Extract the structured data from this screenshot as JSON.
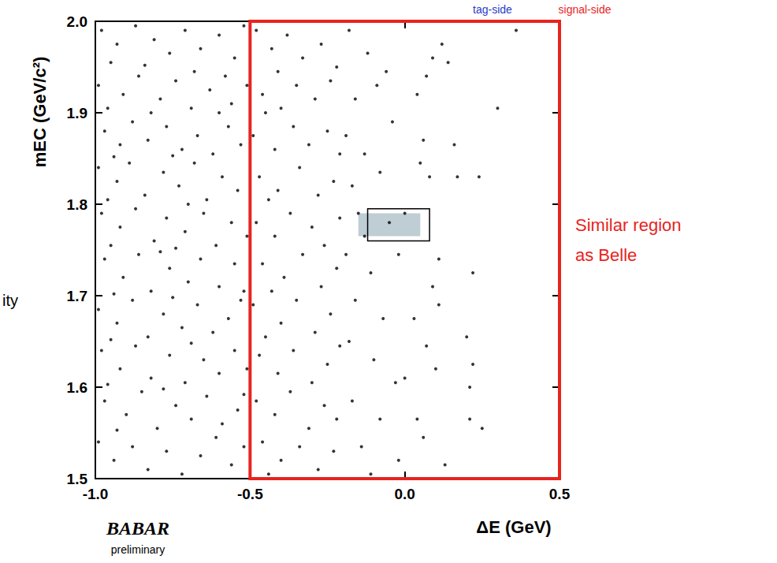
{
  "chart_data": {
    "type": "scatter",
    "xlabel": "ΔE (GeV)",
    "ylabel": "mEC (GeV/c²)",
    "color": "#000000",
    "marker": "circle",
    "grid": false,
    "xlim": [
      -1.0,
      0.5
    ],
    "ylim": [
      1.5,
      2.0
    ],
    "xticks": [
      {
        "value": -1.0,
        "label": "-1.0"
      },
      -0.5,
      {
        "value": 0.0,
        "label": "0.0"
      },
      0.5
    ],
    "yticks": [
      1.5,
      1.6,
      1.7,
      1.8,
      1.9,
      {
        "value": 2.0,
        "label": "2.0"
      }
    ],
    "x": [
      -0.98,
      -0.93,
      -0.87,
      -0.81,
      -0.76,
      -0.71,
      -0.66,
      -0.6,
      -0.55,
      -0.52,
      -0.95,
      -0.84,
      -0.68,
      -0.58,
      -0.99,
      -0.91,
      -0.86,
      -0.79,
      -0.74,
      -0.69,
      -0.63,
      -0.56,
      -0.51,
      -0.96,
      -0.82,
      -0.6,
      -0.97,
      -0.92,
      -0.88,
      -0.83,
      -0.77,
      -0.72,
      -0.67,
      -0.62,
      -0.57,
      -0.53,
      -0.94,
      -0.75,
      -0.99,
      -0.93,
      -0.89,
      -0.84,
      -0.78,
      -0.73,
      -0.68,
      -0.64,
      -0.59,
      -0.54,
      -0.96,
      -0.7,
      -0.98,
      -0.92,
      -0.87,
      -0.81,
      -0.77,
      -0.71,
      -0.65,
      -0.61,
      -0.56,
      -0.51,
      -0.95,
      -0.74,
      -0.97,
      -0.91,
      -0.86,
      -0.82,
      -0.76,
      -0.7,
      -0.66,
      -0.6,
      -0.55,
      -0.52,
      -0.94,
      -0.79,
      -0.99,
      -0.93,
      -0.88,
      -0.83,
      -0.78,
      -0.72,
      -0.67,
      -0.62,
      -0.57,
      -0.53,
      -0.95,
      -0.75,
      -0.98,
      -0.92,
      -0.87,
      -0.82,
      -0.76,
      -0.71,
      -0.65,
      -0.6,
      -0.55,
      -0.51,
      -0.96,
      -0.69,
      -0.97,
      -0.9,
      -0.85,
      -0.8,
      -0.74,
      -0.69,
      -0.64,
      -0.59,
      -0.54,
      -0.93,
      -0.78,
      -0.52,
      -0.99,
      -0.94,
      -0.88,
      -0.83,
      -0.77,
      -0.72,
      -0.66,
      -0.61,
      -0.56,
      -0.52,
      -0.48,
      -0.43,
      -0.38,
      -0.33,
      -0.27,
      -0.22,
      -0.41,
      -0.46,
      -0.4,
      -0.35,
      -0.29,
      -0.24,
      -0.45,
      -0.49,
      -0.42,
      -0.36,
      -0.31,
      -0.25,
      -0.21,
      -0.47,
      -0.41,
      -0.34,
      -0.28,
      -0.23,
      -0.44,
      -0.48,
      -0.42,
      -0.37,
      -0.3,
      -0.26,
      -0.21,
      -0.46,
      -0.39,
      -0.33,
      -0.27,
      -0.22,
      -0.43,
      -0.49,
      -0.4,
      -0.35,
      -0.29,
      -0.24,
      -0.45,
      -0.47,
      -0.41,
      -0.36,
      -0.3,
      -0.25,
      -0.21,
      -0.48,
      -0.42,
      -0.37,
      -0.31,
      -0.26,
      -0.22,
      -0.46,
      -0.4,
      -0.34,
      -0.28,
      -0.23,
      -0.44,
      -0.18,
      -0.12,
      -0.06,
      -0.16,
      -0.09,
      -0.19,
      -0.13,
      -0.04,
      -0.17,
      -0.08,
      -0.15,
      -0.05,
      -0.19,
      -0.11,
      -0.02,
      -0.16,
      -0.07,
      -0.18,
      -0.1,
      -0.03,
      -0.17,
      -0.08,
      -0.14,
      -0.02,
      -0.11,
      -0.13,
      0.09,
      0.14,
      0.3,
      0.36,
      0.16,
      0.17,
      0.09,
      0.11,
      0.22,
      0.2,
      0.22,
      0.21,
      0.21,
      0.25,
      0.13,
      0.24,
      0.06,
      0.04,
      0.07,
      0.0,
      0.03,
      0.07,
      0.0,
      0.04,
      0.06,
      0.1,
      0.11,
      0.05,
      0.12,
      0.08
    ],
    "values": [
      1.99,
      1.975,
      1.995,
      1.98,
      1.965,
      1.99,
      1.97,
      1.985,
      1.96,
      1.995,
      1.955,
      1.952,
      1.945,
      1.94,
      1.93,
      1.92,
      1.94,
      1.915,
      1.935,
      1.905,
      1.925,
      1.91,
      1.93,
      1.905,
      1.9,
      1.9,
      1.88,
      1.865,
      1.89,
      1.87,
      1.885,
      1.86,
      1.875,
      1.855,
      1.885,
      1.865,
      1.852,
      1.853,
      1.84,
      1.825,
      1.845,
      1.81,
      1.835,
      1.82,
      1.845,
      1.805,
      1.83,
      1.815,
      1.805,
      1.8,
      1.79,
      1.775,
      1.795,
      1.76,
      1.785,
      1.77,
      1.79,
      1.755,
      1.78,
      1.765,
      1.755,
      1.752,
      1.74,
      1.72,
      1.745,
      1.705,
      1.73,
      1.715,
      1.74,
      1.71,
      1.735,
      1.705,
      1.702,
      1.748,
      1.685,
      1.67,
      1.695,
      1.655,
      1.68,
      1.665,
      1.69,
      1.66,
      1.675,
      1.695,
      1.652,
      1.698,
      1.64,
      1.62,
      1.645,
      1.61,
      1.635,
      1.605,
      1.63,
      1.615,
      1.64,
      1.62,
      1.603,
      1.648,
      1.585,
      1.57,
      1.595,
      1.555,
      1.58,
      1.565,
      1.59,
      1.56,
      1.575,
      1.553,
      1.598,
      1.592,
      1.54,
      1.52,
      1.535,
      1.51,
      1.53,
      1.505,
      1.525,
      1.545,
      1.515,
      1.535,
      1.99,
      1.97,
      1.985,
      1.96,
      1.975,
      1.95,
      1.945,
      1.92,
      1.905,
      1.93,
      1.915,
      1.935,
      1.9,
      1.875,
      1.86,
      1.885,
      1.865,
      1.88,
      1.855,
      1.83,
      1.815,
      1.84,
      1.81,
      1.825,
      1.805,
      1.78,
      1.765,
      1.79,
      1.775,
      1.755,
      1.785,
      1.735,
      1.72,
      1.745,
      1.71,
      1.73,
      1.705,
      1.69,
      1.67,
      1.695,
      1.66,
      1.68,
      1.655,
      1.635,
      1.615,
      1.64,
      1.605,
      1.625,
      1.645,
      1.585,
      1.57,
      1.595,
      1.555,
      1.58,
      1.565,
      1.54,
      1.52,
      1.535,
      1.51,
      1.53,
      1.505,
      1.99,
      1.965,
      1.945,
      1.915,
      1.93,
      1.875,
      1.855,
      1.89,
      1.82,
      1.835,
      1.79,
      1.78,
      1.745,
      1.725,
      1.745,
      1.695,
      1.675,
      1.65,
      1.63,
      1.605,
      1.585,
      1.565,
      1.535,
      1.52,
      1.505,
      1.765,
      1.96,
      1.955,
      1.905,
      1.99,
      1.865,
      1.83,
      1.71,
      1.74,
      1.725,
      1.655,
      1.625,
      1.6,
      1.565,
      1.555,
      1.515,
      1.83,
      1.87,
      1.92,
      1.94,
      1.79,
      1.675,
      1.645,
      1.61,
      1.565,
      1.545,
      1.62,
      1.69,
      1.845,
      1.975,
      1.83
    ],
    "regions": [
      {
        "type": "area",
        "x": [
          -0.15,
          0.05
        ],
        "y": [
          1.765,
          1.79
        ],
        "color": "#bfcdd4"
      },
      {
        "type": "box",
        "x": [
          -0.12,
          0.08
        ],
        "y": [
          1.76,
          1.795
        ],
        "color": "#000000"
      },
      {
        "type": "box",
        "x": [
          -0.5,
          0.5
        ],
        "y": [
          1.5,
          2.0
        ],
        "color": "#e8231e"
      }
    ],
    "annotations": [
      {
        "text": "tag-side",
        "color": "#2a3cc8"
      },
      {
        "text": "signal-side",
        "color": "#e8231e"
      },
      {
        "text": "Similar region",
        "color": "#e8231e"
      },
      {
        "text": "as Belle",
        "color": "#e8231e"
      },
      {
        "text": "BABAR",
        "color": "#000000"
      },
      {
        "text": "preliminary",
        "color": "#000000"
      },
      {
        "text": "ity",
        "color": "#000000"
      }
    ]
  }
}
